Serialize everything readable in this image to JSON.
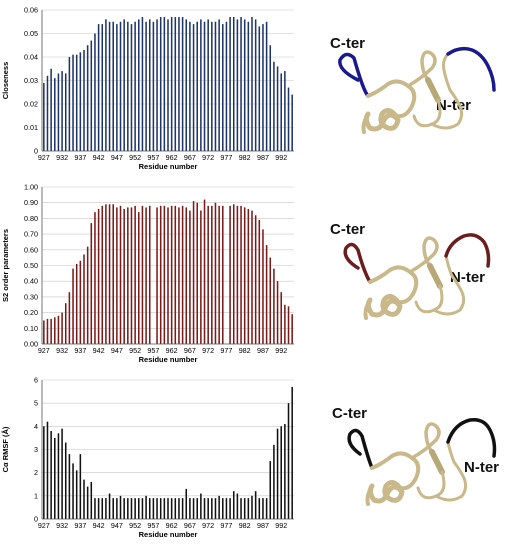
{
  "chart_data": [
    {
      "type": "bar",
      "ylabel": "Closeness",
      "xlabel": "Residue number",
      "ylim": [
        0,
        0.06
      ],
      "yticks": [
        "0",
        "0.01",
        "0.02",
        "0.03",
        "0.04",
        "0.05",
        "0.06"
      ],
      "xticks": [
        "927",
        "932",
        "937",
        "942",
        "947",
        "952",
        "957",
        "962",
        "967",
        "972",
        "977",
        "982",
        "987",
        "992"
      ],
      "grid": true,
      "color": "#1f3566",
      "x": [
        927,
        928,
        929,
        930,
        931,
        932,
        933,
        934,
        935,
        936,
        937,
        938,
        939,
        940,
        941,
        942,
        943,
        944,
        945,
        946,
        947,
        948,
        949,
        950,
        951,
        952,
        953,
        954,
        955,
        956,
        957,
        958,
        959,
        960,
        961,
        962,
        963,
        964,
        965,
        966,
        967,
        968,
        969,
        970,
        971,
        972,
        973,
        974,
        975,
        976,
        977,
        978,
        979,
        980,
        981,
        982,
        983,
        984,
        985,
        986,
        987,
        988,
        989,
        990,
        991,
        992,
        993,
        994,
        995
      ],
      "values": [
        0.029,
        0.032,
        0.035,
        0.031,
        0.033,
        0.034,
        0.033,
        0.04,
        0.041,
        0.041,
        0.042,
        0.043,
        0.045,
        0.047,
        0.05,
        0.054,
        0.054,
        0.056,
        0.055,
        0.055,
        0.054,
        0.055,
        0.056,
        0.055,
        0.054,
        0.055,
        0.056,
        0.057,
        0.055,
        0.056,
        0.055,
        0.056,
        0.057,
        0.057,
        0.056,
        0.057,
        0.057,
        0.057,
        0.057,
        0.056,
        0.055,
        0.054,
        0.055,
        0.056,
        0.055,
        0.056,
        0.055,
        0.055,
        0.056,
        0.054,
        0.055,
        0.057,
        0.057,
        0.056,
        0.057,
        0.056,
        0.055,
        0.057,
        0.056,
        0.053,
        0.054,
        0.055,
        0.045,
        0.038,
        0.036,
        0.033,
        0.034,
        0.027,
        0.024
      ]
    },
    {
      "type": "bar",
      "ylabel": "S2 order parameters",
      "xlabel": "Residue number",
      "ylim": [
        0,
        1.0
      ],
      "yticks": [
        "0.00",
        "0.10",
        "0.20",
        "0.30",
        "0.40",
        "0.50",
        "0.60",
        "0.70",
        "0.80",
        "0.90",
        "1.00"
      ],
      "xticks": [
        "927",
        "932",
        "937",
        "942",
        "947",
        "952",
        "957",
        "962",
        "967",
        "972",
        "977",
        "982",
        "987",
        "992"
      ],
      "grid": true,
      "color": "#7a1a1a",
      "x": [
        927,
        928,
        929,
        930,
        931,
        932,
        933,
        934,
        935,
        936,
        937,
        938,
        939,
        940,
        941,
        942,
        943,
        944,
        945,
        946,
        947,
        948,
        949,
        950,
        951,
        952,
        953,
        954,
        955,
        956,
        957,
        958,
        959,
        960,
        961,
        962,
        963,
        964,
        965,
        966,
        967,
        968,
        969,
        970,
        971,
        972,
        973,
        974,
        975,
        976,
        977,
        978,
        979,
        980,
        981,
        982,
        983,
        984,
        985,
        986,
        987,
        988,
        989,
        990,
        991,
        992,
        993,
        994,
        995
      ],
      "values": [
        0.15,
        0.16,
        0.16,
        0.17,
        0.18,
        0.2,
        0.26,
        0.33,
        0.48,
        0.51,
        0.53,
        0.57,
        0.62,
        0.77,
        0.84,
        0.86,
        0.88,
        0.89,
        0.89,
        0.89,
        0.87,
        0.88,
        0.86,
        0.87,
        0.87,
        0.88,
        0.84,
        0.88,
        0.87,
        0.88,
        null,
        0.87,
        0.88,
        0.88,
        0.87,
        0.88,
        0.88,
        0.87,
        0.88,
        0.87,
        0.85,
        0.91,
        0.9,
        0.85,
        0.92,
        0.88,
        0.88,
        0.9,
        0.88,
        0.88,
        null,
        0.88,
        0.89,
        0.88,
        0.88,
        0.87,
        0.86,
        0.85,
        0.82,
        0.79,
        0.73,
        0.63,
        0.55,
        0.48,
        0.4,
        0.33,
        0.25,
        0.24,
        0.19
      ]
    },
    {
      "type": "bar",
      "ylabel": "Cα RMSF (Å)",
      "xlabel": "Residue number",
      "ylim": [
        0,
        6
      ],
      "yticks": [
        "0",
        "1",
        "2",
        "3",
        "4",
        "5",
        "6"
      ],
      "xticks": [
        "927",
        "932",
        "937",
        "942",
        "947",
        "952",
        "957",
        "962",
        "967",
        "972",
        "977",
        "982",
        "987",
        "992"
      ],
      "grid": true,
      "color": "#111111",
      "x": [
        927,
        928,
        929,
        930,
        931,
        932,
        933,
        934,
        935,
        936,
        937,
        938,
        939,
        940,
        941,
        942,
        943,
        944,
        945,
        946,
        947,
        948,
        949,
        950,
        951,
        952,
        953,
        954,
        955,
        956,
        957,
        958,
        959,
        960,
        961,
        962,
        963,
        964,
        965,
        966,
        967,
        968,
        969,
        970,
        971,
        972,
        973,
        974,
        975,
        976,
        977,
        978,
        979,
        980,
        981,
        982,
        983,
        984,
        985,
        986,
        987,
        988,
        989,
        990,
        991,
        992,
        993,
        994,
        995
      ],
      "values": [
        4.0,
        4.2,
        3.8,
        3.5,
        3.7,
        3.9,
        3.3,
        2.8,
        2.4,
        2.1,
        2.8,
        1.7,
        1.4,
        1.6,
        0.9,
        0.9,
        0.9,
        0.9,
        1.1,
        0.9,
        0.9,
        1.0,
        0.9,
        0.9,
        0.9,
        0.9,
        0.9,
        0.9,
        1.0,
        0.9,
        0.9,
        0.9,
        0.9,
        0.9,
        0.9,
        0.9,
        0.9,
        0.9,
        0.9,
        1.3,
        0.9,
        0.9,
        0.9,
        1.1,
        0.9,
        0.9,
        0.9,
        0.9,
        1.0,
        0.9,
        0.9,
        0.9,
        1.2,
        1.1,
        0.9,
        0.9,
        0.9,
        1.0,
        1.2,
        0.9,
        0.9,
        0.9,
        2.5,
        3.2,
        3.9,
        4.0,
        4.1,
        5.0,
        5.7
      ]
    }
  ],
  "structures": [
    {
      "cter": "C-ter",
      "nter": "N-ter",
      "highlight": "#1a1a8c"
    },
    {
      "cter": "C-ter",
      "nter": "N-ter",
      "highlight": "#6b1e1e"
    },
    {
      "cter": "C-ter",
      "nter": "N-ter",
      "highlight": "#111111"
    }
  ]
}
